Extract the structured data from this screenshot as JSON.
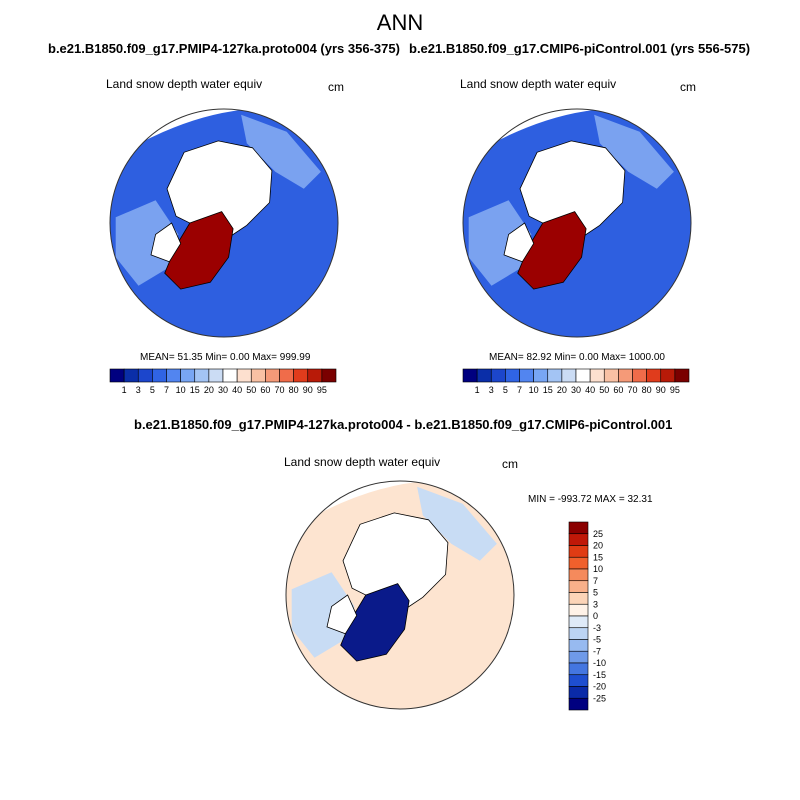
{
  "page": {
    "title": "ANN"
  },
  "chart_data": [
    {
      "type": "heatmap",
      "projection": "north-polar-stereographic",
      "case_title": "b.e21.B1850.f09_g17.PMIP4-127ka.proto004 (yrs 356-375)",
      "variable": "Land snow depth water equiv",
      "units": "cm",
      "stats": {
        "mean": "51.35",
        "min": "0.00",
        "max": "999.99"
      },
      "stats_text": "MEAN=  51.35  Min=   0.00  Max= 999.99",
      "colorbar_ticks": [
        "1",
        "3",
        "5",
        "7",
        "10",
        "15",
        "20",
        "30",
        "40",
        "50",
        "60",
        "70",
        "80",
        "90",
        "95"
      ],
      "colorbar_colors": [
        "#000080",
        "#0a2ea8",
        "#1c46cc",
        "#3064e4",
        "#5285f0",
        "#78a6f4",
        "#a3c4f4",
        "#cbdcf4",
        "#ffffff",
        "#fde0cf",
        "#f9c1a4",
        "#f59a78",
        "#f06c4a",
        "#e03c1c",
        "#b81a08",
        "#7a0000"
      ],
      "colorbar_orientation": "horizontal",
      "regions": {
        "background": "#2e5fe0",
        "coast": "#7aa2f0",
        "greenland": "#9b0000",
        "arctic_ocean": "#ffffff"
      }
    },
    {
      "type": "heatmap",
      "projection": "north-polar-stereographic",
      "case_title": "b.e21.B1850.f09_g17.CMIP6-piControl.001 (yrs 556-575)",
      "variable": "Land snow depth water equiv",
      "units": "cm",
      "stats": {
        "mean": "82.92",
        "min": "0.00",
        "max": "1000.00"
      },
      "stats_text": "MEAN=  82.92  Min=   0.00  Max= 1000.00",
      "colorbar_ticks": [
        "1",
        "3",
        "5",
        "7",
        "10",
        "15",
        "20",
        "30",
        "40",
        "50",
        "60",
        "70",
        "80",
        "90",
        "95"
      ],
      "colorbar_colors": [
        "#000080",
        "#0a2ea8",
        "#1c46cc",
        "#3064e4",
        "#5285f0",
        "#78a6f4",
        "#a3c4f4",
        "#cbdcf4",
        "#ffffff",
        "#fde0cf",
        "#f9c1a4",
        "#f59a78",
        "#f06c4a",
        "#e03c1c",
        "#b81a08",
        "#7a0000"
      ],
      "colorbar_orientation": "horizontal",
      "regions": {
        "background": "#2e5fe0",
        "coast": "#7aa2f0",
        "greenland": "#9b0000",
        "arctic_ocean": "#ffffff"
      }
    },
    {
      "type": "heatmap",
      "projection": "north-polar-stereographic",
      "case_title": "b.e21.B1850.f09_g17.PMIP4-127ka.proto004 - b.e21.B1850.f09_g17.CMIP6-piControl.001",
      "variable": "Land snow depth water equiv",
      "units": "cm",
      "stats": {
        "min": "-993.72",
        "max": "32.31"
      },
      "stats_text": "MIN = -993.72 MAX =  32.31",
      "colorbar_ticks": [
        "25",
        "20",
        "15",
        "10",
        "7",
        "5",
        "3",
        "0",
        "-3",
        "-5",
        "-7",
        "-10",
        "-15",
        "-20",
        "-25"
      ],
      "colorbar_colors": [
        "#8b0000",
        "#c01808",
        "#e03c14",
        "#f0602c",
        "#f58a5c",
        "#f9b08a",
        "#fcd4b8",
        "#fff2e8",
        "#dfeaf8",
        "#bcd4f4",
        "#97baf0",
        "#6f9ae8",
        "#4476e0",
        "#1e4ed0",
        "#0a2aa8",
        "#000080"
      ],
      "colorbar_orientation": "vertical",
      "regions": {
        "background": "#fde4d0",
        "coast": "#c8dcf4",
        "greenland": "#0a1a8a",
        "arctic_ocean": "#ffffff"
      }
    }
  ]
}
